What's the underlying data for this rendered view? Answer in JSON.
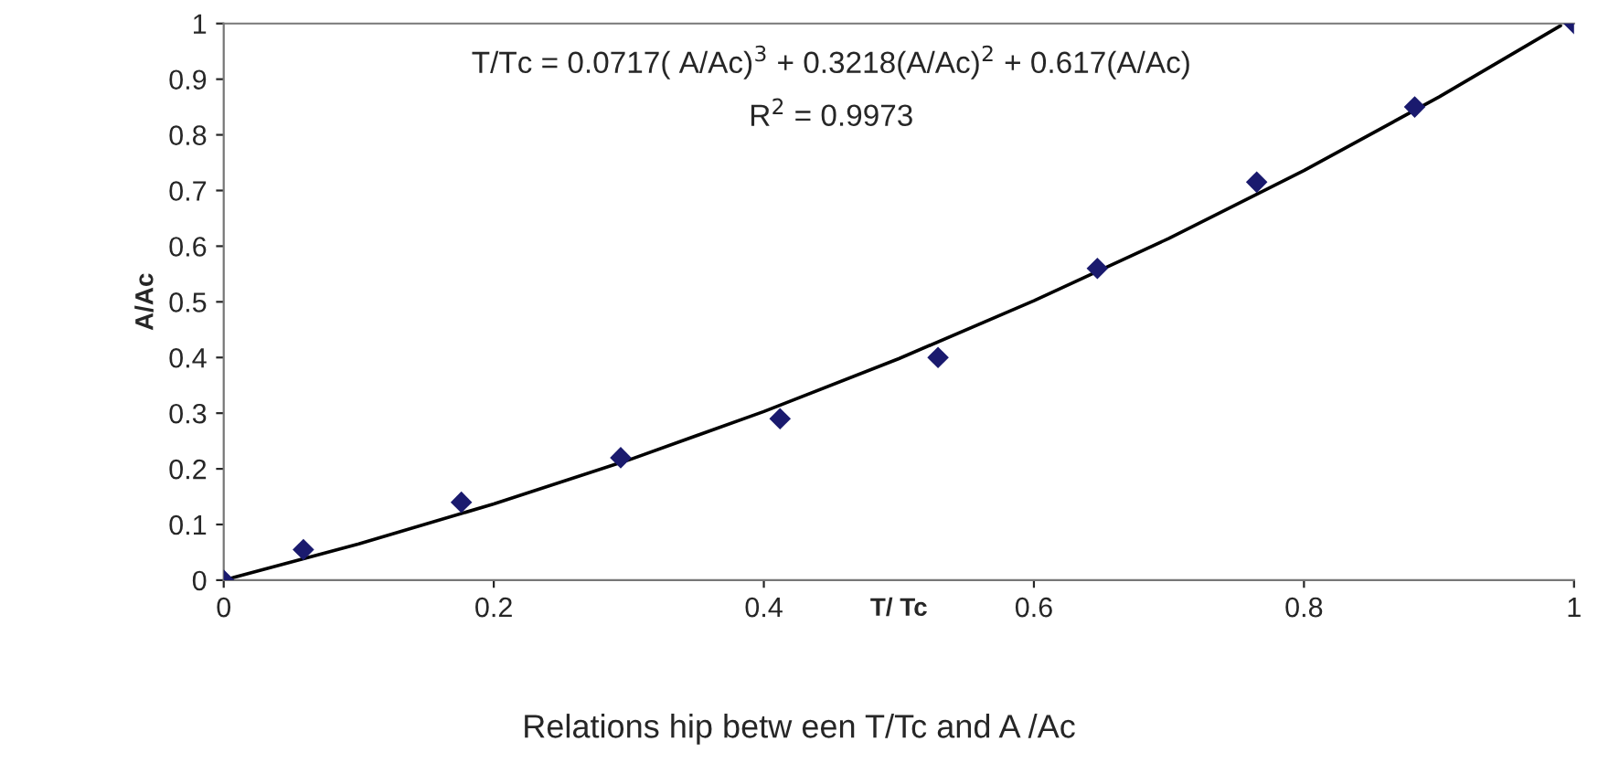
{
  "chart_data": {
    "type": "scatter",
    "title": "Relations hip betw een T/Tc and A /Ac",
    "xlabel": "T/ Tc",
    "ylabel": "A/Ac",
    "annotations": [
      "T/Tc = 0.0717( A/Ac)$^{3}$ + 0.3218(A/Ac)$^{2}$ + 0.617(A/Ac)",
      "R$^{2}$ = 0.9973"
    ],
    "series": [
      {
        "color": "#1a1a6e",
        "marker": "diamond",
        "x": [
          0,
          0.059,
          0.176,
          0.294,
          0.412,
          0.529,
          0.647,
          0.765,
          0.882,
          1
        ],
        "values": [
          0,
          0.055,
          0.14,
          0.22,
          0.29,
          0.4,
          0.56,
          0.715,
          0.85,
          1
        ]
      },
      {
        "type": "line",
        "color": "#000000",
        "x": [
          0,
          0.1,
          0.2,
          0.3,
          0.4,
          0.5,
          0.6,
          0.7,
          0.8,
          0.9,
          0.99
        ],
        "values": [
          0,
          0.065,
          0.137,
          0.216,
          0.303,
          0.398,
          0.502,
          0.614,
          0.736,
          0.868,
          0.996
        ]
      }
    ],
    "xlim": [
      0,
      1
    ],
    "xticks": [
      0,
      0.2,
      0.4,
      0.6,
      0.8,
      1
    ],
    "ylim": [
      0,
      1
    ],
    "yticks": [
      0,
      0.1,
      0.2,
      0.3,
      0.4,
      0.5,
      0.6,
      0.7,
      0.8,
      0.9,
      1
    ],
    "grid": false,
    "legend": false
  }
}
